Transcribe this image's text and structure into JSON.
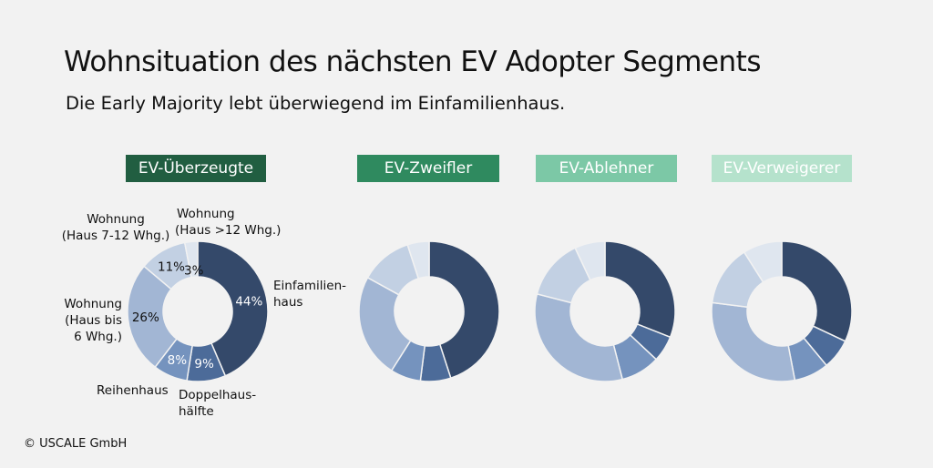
{
  "title": "Wohnsituation des nächsten EV Adopter Segments",
  "subtitle": "Die Early Majority lebt überwiegend im Einfamilienhaus.",
  "copyright": "© USCALE GmbH",
  "colors": {
    "background": "#f2f2f2",
    "segment_labels": [
      "#215e41",
      "#2f8a5f",
      "#7cc8a6",
      "#b5e2cc"
    ],
    "slices": [
      "#34496a",
      "#4c6b99",
      "#7593be",
      "#a2b6d4",
      "#c2d0e3",
      "#dfe6ef"
    ]
  },
  "annotations": {
    "einfamilienhaus": [
      "Einfamilien-",
      "haus"
    ],
    "doppelhaus": [
      "Doppelhaus-",
      "hälfte"
    ],
    "reihenhaus": [
      "Reihenhaus"
    ],
    "wohnung_bis6": [
      "Wohnung",
      "(Haus bis",
      "6 Whg.)"
    ],
    "wohnung_7_12": [
      "Wohnung",
      "(Haus 7-12 Whg.)"
    ],
    "wohnung_12plus": [
      "Wohnung",
      "(Haus >12 Whg.)"
    ]
  },
  "chart_data": [
    {
      "type": "pie",
      "variant": "donut",
      "segment": "EV-Überzeugte",
      "categories": [
        "Einfamilienhaus",
        "Doppelhaushälfte",
        "Reihenhaus",
        "Wohnung (Haus bis 6 Whg.)",
        "Wohnung (Haus 7-12 Whg.)",
        "Wohnung (Haus >12 Whg.)"
      ],
      "values": [
        44,
        9,
        8,
        26,
        11,
        3
      ],
      "data_labels": [
        "44%",
        "9%",
        "8%",
        "26%",
        "11%",
        "3%"
      ]
    },
    {
      "type": "pie",
      "variant": "donut",
      "segment": "EV-Zweifler",
      "categories": [
        "Einfamilienhaus",
        "Doppelhaushälfte",
        "Reihenhaus",
        "Wohnung (Haus bis 6 Whg.)",
        "Wohnung (Haus 7-12 Whg.)",
        "Wohnung (Haus >12 Whg.)"
      ],
      "values": [
        45,
        7,
        7,
        24,
        12,
        5
      ]
    },
    {
      "type": "pie",
      "variant": "donut",
      "segment": "EV-Ablehner",
      "categories": [
        "Einfamilienhaus",
        "Doppelhaushälfte",
        "Reihenhaus",
        "Wohnung (Haus bis 6 Whg.)",
        "Wohnung (Haus 7-12 Whg.)",
        "Wohnung (Haus >12 Whg.)"
      ],
      "values": [
        31,
        6,
        9,
        33,
        14,
        7
      ]
    },
    {
      "type": "pie",
      "variant": "donut",
      "segment": "EV-Verweigerer",
      "categories": [
        "Einfamilienhaus",
        "Doppelhaushälfte",
        "Reihenhaus",
        "Wohnung (Haus bis 6 Whg.)",
        "Wohnung (Haus 7-12 Whg.)",
        "Wohnung (Haus >12 Whg.)"
      ],
      "values": [
        32,
        7,
        8,
        30,
        14,
        9
      ]
    }
  ]
}
